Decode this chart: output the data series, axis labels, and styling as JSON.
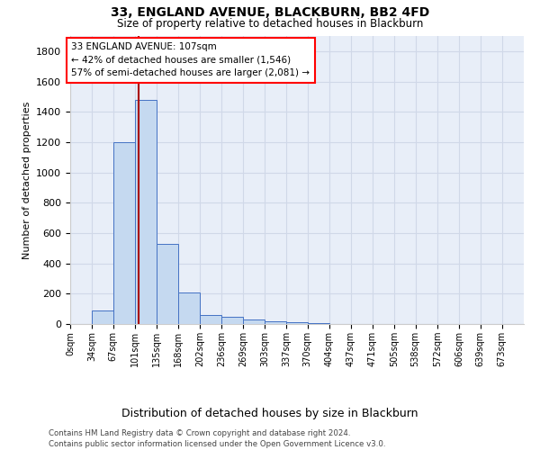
{
  "title1": "33, ENGLAND AVENUE, BLACKBURN, BB2 4FD",
  "title2": "Size of property relative to detached houses in Blackburn",
  "xlabel": "Distribution of detached houses by size in Blackburn",
  "ylabel": "Number of detached properties",
  "footnote1": "Contains HM Land Registry data © Crown copyright and database right 2024.",
  "footnote2": "Contains public sector information licensed under the Open Government Licence v3.0.",
  "bin_labels": [
    "0sqm",
    "34sqm",
    "67sqm",
    "101sqm",
    "135sqm",
    "168sqm",
    "202sqm",
    "236sqm",
    "269sqm",
    "303sqm",
    "337sqm",
    "370sqm",
    "404sqm",
    "437sqm",
    "471sqm",
    "505sqm",
    "538sqm",
    "572sqm",
    "606sqm",
    "639sqm",
    "673sqm"
  ],
  "bar_values": [
    0,
    90,
    1200,
    1480,
    530,
    205,
    60,
    45,
    30,
    20,
    10,
    5,
    2,
    0,
    0,
    0,
    0,
    0,
    0,
    0
  ],
  "bar_color": "#c5d9f0",
  "bar_edge_color": "#4472c4",
  "annotation_line1": "33 ENGLAND AVENUE: 107sqm",
  "annotation_line2": "← 42% of detached houses are smaller (1,546)",
  "annotation_line3": "57% of semi-detached houses are larger (2,081) →",
  "vline_color": "#aa0000",
  "ylim": [
    0,
    1900
  ],
  "yticks": [
    0,
    200,
    400,
    600,
    800,
    1000,
    1200,
    1400,
    1600,
    1800
  ],
  "property_size_sqm": 107,
  "bin_edges": [
    0,
    34,
    67,
    101,
    135,
    168,
    202,
    236,
    269,
    303,
    337,
    370,
    404,
    437,
    471,
    505,
    538,
    572,
    606,
    639,
    673
  ],
  "xlim_max": 707,
  "grid_color": "#d0d8e8",
  "bg_color": "#e8eef8"
}
